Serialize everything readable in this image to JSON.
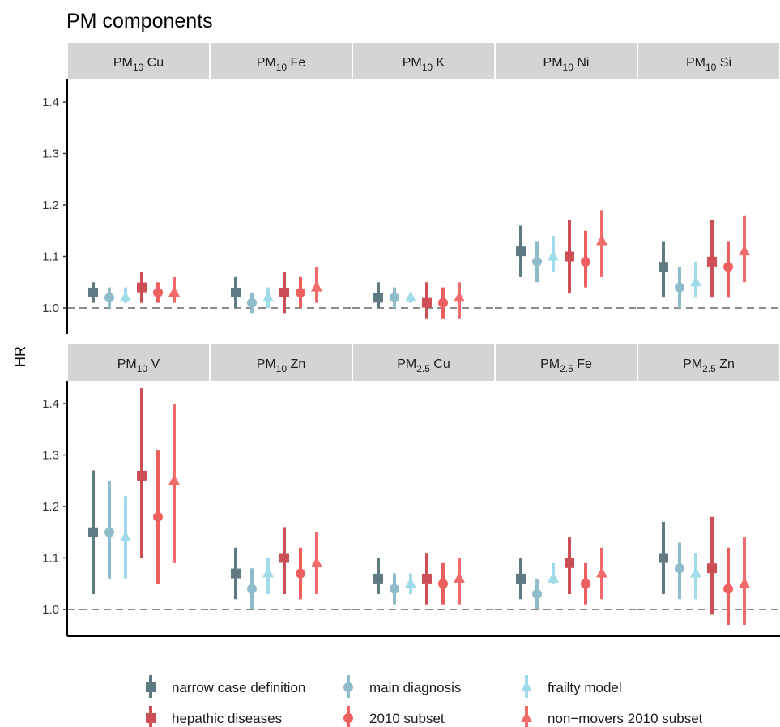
{
  "chart_data": {
    "type": "forest",
    "title": "PM components",
    "ylabel": "HR",
    "ylim": [
      0.95,
      1.45
    ],
    "yticks": [
      1.0,
      1.1,
      1.2,
      1.3,
      1.4
    ],
    "ytick_labels": [
      "1.0",
      "1.1",
      "1.2",
      "1.3",
      "1.4"
    ],
    "reference_line": 1.0,
    "legend_position": "bottom",
    "series": [
      {
        "name": "narrow case definition",
        "shape": "square",
        "color": "#5f7a83"
      },
      {
        "name": "main diagnosis",
        "shape": "circle",
        "color": "#8fbccb"
      },
      {
        "name": "frailty model",
        "shape": "triangle",
        "color": "#9fdbe8"
      },
      {
        "name": "hepathic diseases",
        "shape": "square",
        "color": "#cc4f55"
      },
      {
        "name": "2010 subset",
        "shape": "circle",
        "color": "#ee5f60"
      },
      {
        "name": "non−movers 2010 subset",
        "shape": "triangle",
        "color": "#f26b6b"
      }
    ],
    "panels": [
      {
        "label_main": "PM",
        "label_sub": "10",
        "label_rest": " Cu",
        "est": [
          1.03,
          1.02,
          1.02,
          1.04,
          1.03,
          1.03
        ],
        "lo": [
          1.01,
          1.0,
          1.01,
          1.01,
          1.01,
          1.01
        ],
        "hi": [
          1.05,
          1.04,
          1.04,
          1.07,
          1.05,
          1.06
        ]
      },
      {
        "label_main": "PM",
        "label_sub": "10",
        "label_rest": " Fe",
        "est": [
          1.03,
          1.01,
          1.02,
          1.03,
          1.03,
          1.04
        ],
        "lo": [
          1.0,
          0.99,
          1.0,
          0.99,
          1.0,
          1.01
        ],
        "hi": [
          1.06,
          1.03,
          1.04,
          1.07,
          1.06,
          1.08
        ]
      },
      {
        "label_main": "PM",
        "label_sub": "10",
        "label_rest": " K",
        "est": [
          1.02,
          1.02,
          1.02,
          1.01,
          1.01,
          1.02
        ],
        "lo": [
          1.0,
          1.0,
          1.01,
          0.98,
          0.98,
          0.98
        ],
        "hi": [
          1.05,
          1.04,
          1.03,
          1.05,
          1.04,
          1.05
        ]
      },
      {
        "label_main": "PM",
        "label_sub": "10",
        "label_rest": " Ni",
        "est": [
          1.11,
          1.09,
          1.1,
          1.1,
          1.09,
          1.13
        ],
        "lo": [
          1.06,
          1.05,
          1.07,
          1.03,
          1.04,
          1.06
        ],
        "hi": [
          1.16,
          1.13,
          1.14,
          1.17,
          1.15,
          1.19
        ]
      },
      {
        "label_main": "PM",
        "label_sub": "10",
        "label_rest": " Si",
        "est": [
          1.08,
          1.04,
          1.05,
          1.09,
          1.08,
          1.11
        ],
        "lo": [
          1.02,
          1.0,
          1.02,
          1.02,
          1.02,
          1.05
        ],
        "hi": [
          1.13,
          1.08,
          1.09,
          1.17,
          1.13,
          1.18
        ]
      },
      {
        "label_main": "PM",
        "label_sub": "10",
        "label_rest": " V",
        "est": [
          1.15,
          1.15,
          1.14,
          1.26,
          1.18,
          1.25
        ],
        "lo": [
          1.03,
          1.06,
          1.06,
          1.1,
          1.05,
          1.09
        ],
        "hi": [
          1.27,
          1.25,
          1.22,
          1.43,
          1.31,
          1.4
        ]
      },
      {
        "label_main": "PM",
        "label_sub": "10",
        "label_rest": " Zn",
        "est": [
          1.07,
          1.04,
          1.07,
          1.1,
          1.07,
          1.09
        ],
        "lo": [
          1.02,
          1.0,
          1.03,
          1.03,
          1.02,
          1.03
        ],
        "hi": [
          1.12,
          1.08,
          1.1,
          1.16,
          1.12,
          1.15
        ]
      },
      {
        "label_main": "PM",
        "label_sub": "2.5",
        "label_rest": " Cu",
        "est": [
          1.06,
          1.04,
          1.05,
          1.06,
          1.05,
          1.06
        ],
        "lo": [
          1.03,
          1.01,
          1.03,
          1.01,
          1.01,
          1.01
        ],
        "hi": [
          1.1,
          1.07,
          1.07,
          1.11,
          1.09,
          1.1
        ]
      },
      {
        "label_main": "PM",
        "label_sub": "2.5",
        "label_rest": " Fe",
        "est": [
          1.06,
          1.03,
          1.06,
          1.09,
          1.05,
          1.07
        ],
        "lo": [
          1.02,
          1.0,
          1.05,
          1.03,
          1.01,
          1.02
        ],
        "hi": [
          1.1,
          1.06,
          1.09,
          1.14,
          1.09,
          1.12
        ]
      },
      {
        "label_main": "PM",
        "label_sub": "2.5",
        "label_rest": " Zn",
        "est": [
          1.1,
          1.08,
          1.07,
          1.08,
          1.04,
          1.05
        ],
        "lo": [
          1.03,
          1.02,
          1.02,
          0.99,
          0.97,
          0.97
        ],
        "hi": [
          1.17,
          1.13,
          1.11,
          1.18,
          1.12,
          1.14
        ]
      }
    ]
  }
}
